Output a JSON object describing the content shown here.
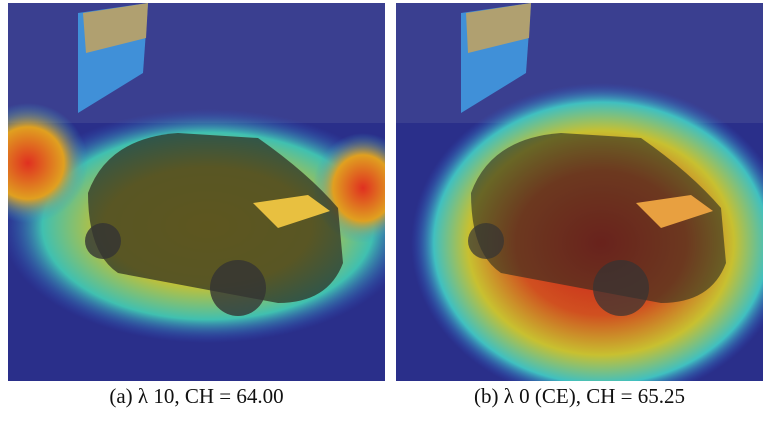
{
  "figures": [
    {
      "caption": "(a) λ 10, CH = 64.00"
    },
    {
      "caption": "(b) λ 0 (CE), CH = 65.25"
    }
  ]
}
